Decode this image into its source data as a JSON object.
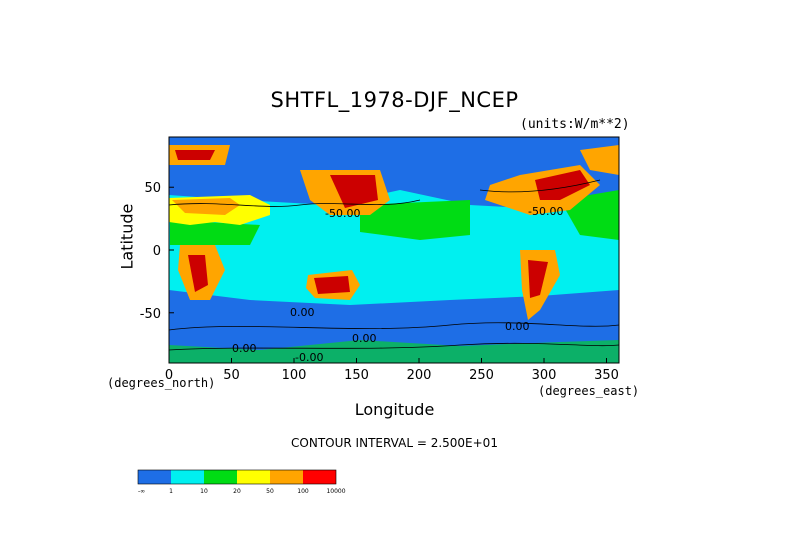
{
  "chart_data": {
    "type": "heatmap",
    "title": "SHTFL_1978-DJF_NCEP",
    "units": "(units:W/m**2)",
    "xlabel": "Longitude",
    "ylabel": "Latitude",
    "x_unit": "(degrees_east)",
    "y_unit": "(degrees_north)",
    "xlim": [
      0,
      360
    ],
    "ylim": [
      -90,
      90
    ],
    "x_ticks": [
      "0",
      "50",
      "100",
      "150",
      "200",
      "250",
      "300",
      "350"
    ],
    "y_ticks": [
      "50",
      "0",
      "-50"
    ],
    "contour_interval": "CONTOUR INTERVAL = 2.500E+01",
    "colorbar": {
      "bins": [
        "-∞",
        "1",
        "10",
        "20",
        "50",
        "100",
        "10000"
      ],
      "colors": [
        "#1e6ee6",
        "#00f0f0",
        "#00dc14",
        "#ffff00",
        "#ffa500",
        "#ff0000"
      ]
    },
    "contour_labels": [
      "-50.00",
      "-50.00",
      "0.00",
      "0.00",
      "0.00",
      "0.00",
      "-0.00"
    ]
  }
}
